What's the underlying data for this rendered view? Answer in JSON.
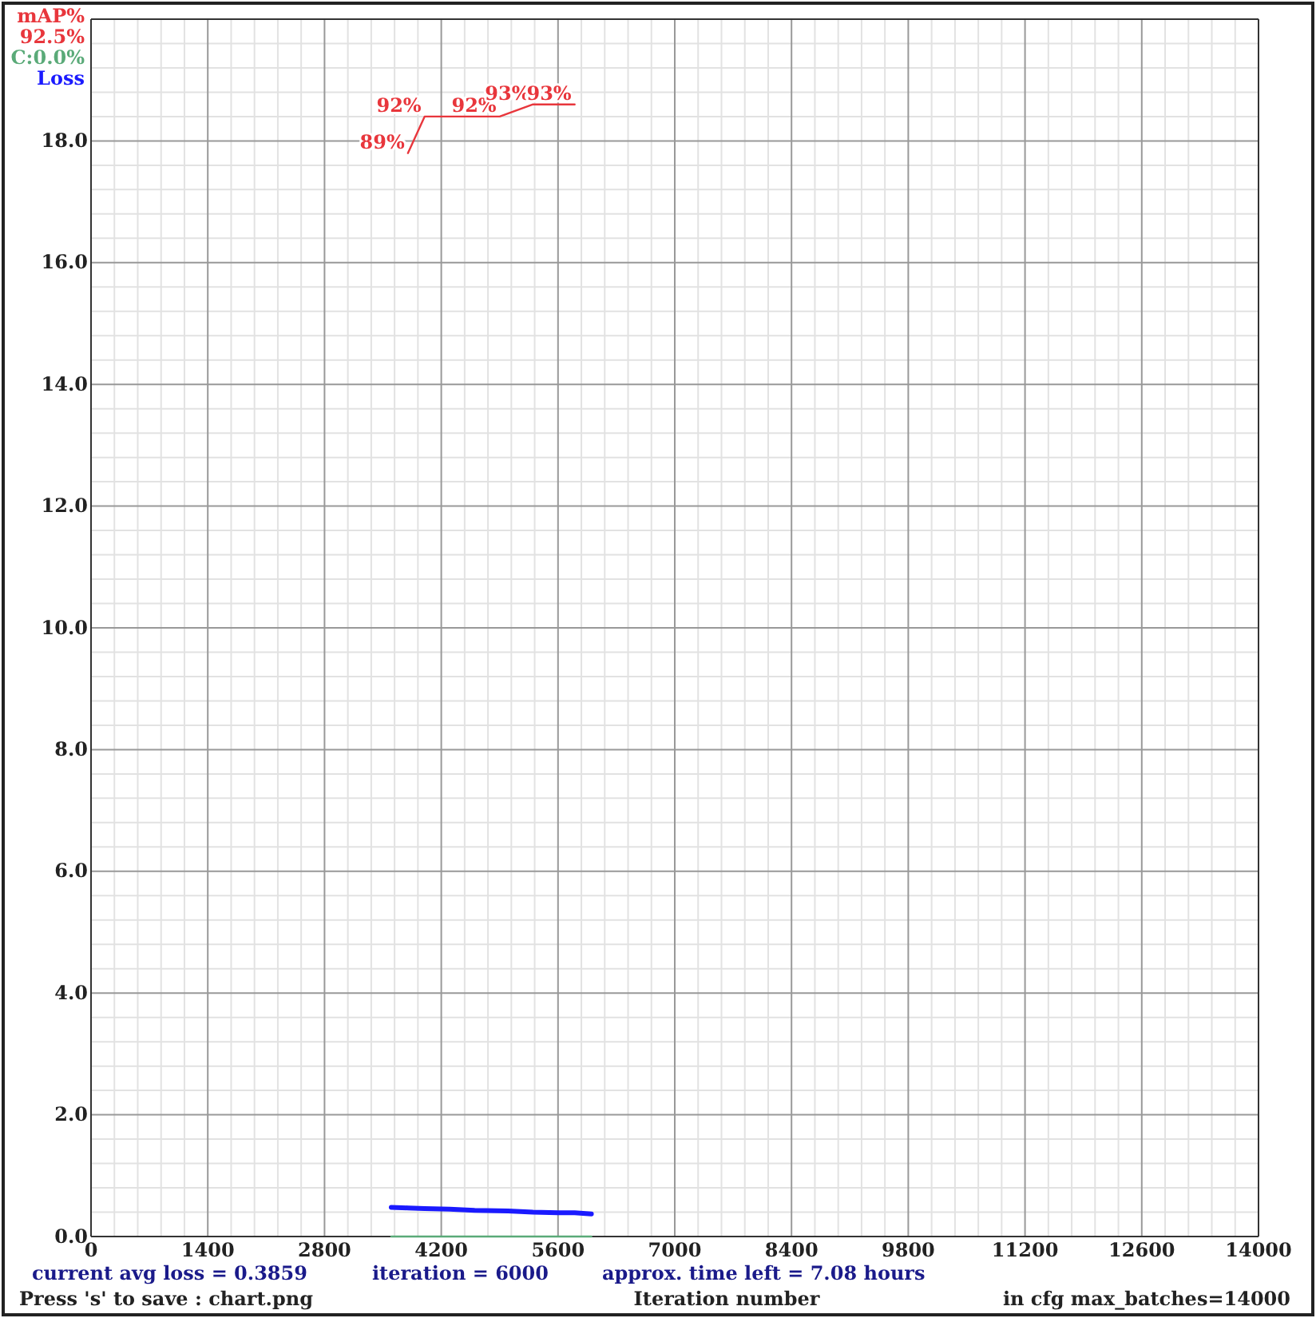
{
  "chart_data": {
    "type": "line",
    "xlabel": "Iteration number",
    "xlim": [
      0,
      14000
    ],
    "xticks": [
      0,
      1400,
      2800,
      4200,
      5600,
      7000,
      8400,
      9800,
      11200,
      12600,
      14000
    ],
    "ylim": [
      0,
      20
    ],
    "yticks": [
      {
        "value": 0,
        "label": "0.0"
      },
      {
        "value": 2,
        "label": "2.0"
      },
      {
        "value": 4,
        "label": "4.0"
      },
      {
        "value": 6,
        "label": "6.0"
      },
      {
        "value": 8,
        "label": "8.0"
      },
      {
        "value": 10,
        "label": "10.0"
      },
      {
        "value": 12,
        "label": "12.0"
      },
      {
        "value": 14,
        "label": "14.0"
      },
      {
        "value": 16,
        "label": "16.0"
      },
      {
        "value": 18,
        "label": "18.0"
      }
    ],
    "y2lim": [
      0,
      100
    ],
    "grid": true,
    "legend": "top left",
    "tick_labels": "xy",
    "series": [
      {
        "name": "mAP%",
        "color": "#e8363c",
        "axis": "y2",
        "x": [
          3800,
          4000,
          4900,
          5300,
          5800
        ],
        "values": [
          89,
          92,
          92,
          93,
          93
        ],
        "value_labels": [
          "89%",
          "92%",
          "92%",
          "93%",
          "93%"
        ]
      },
      {
        "name": "C:0.0%",
        "color": "#5aaa78",
        "axis": "y2",
        "x": [
          3600,
          6000
        ],
        "values": [
          0,
          0
        ]
      },
      {
        "name": "Loss",
        "color": "#1a1aff",
        "x": [
          3600,
          3800,
          4000,
          4300,
          4600,
          5000,
          5300,
          5600,
          5800,
          6000
        ],
        "values": [
          0.48,
          0.47,
          0.46,
          0.45,
          0.43,
          0.42,
          0.4,
          0.39,
          0.39,
          0.37
        ]
      }
    ],
    "annotations": [
      "92.5%",
      "current avg loss = 0.3859",
      "iteration = 6000",
      "approx. time left = 7.08 hours",
      "Press 's' to save : chart.png",
      "in cfg max_batches=14000"
    ]
  }
}
